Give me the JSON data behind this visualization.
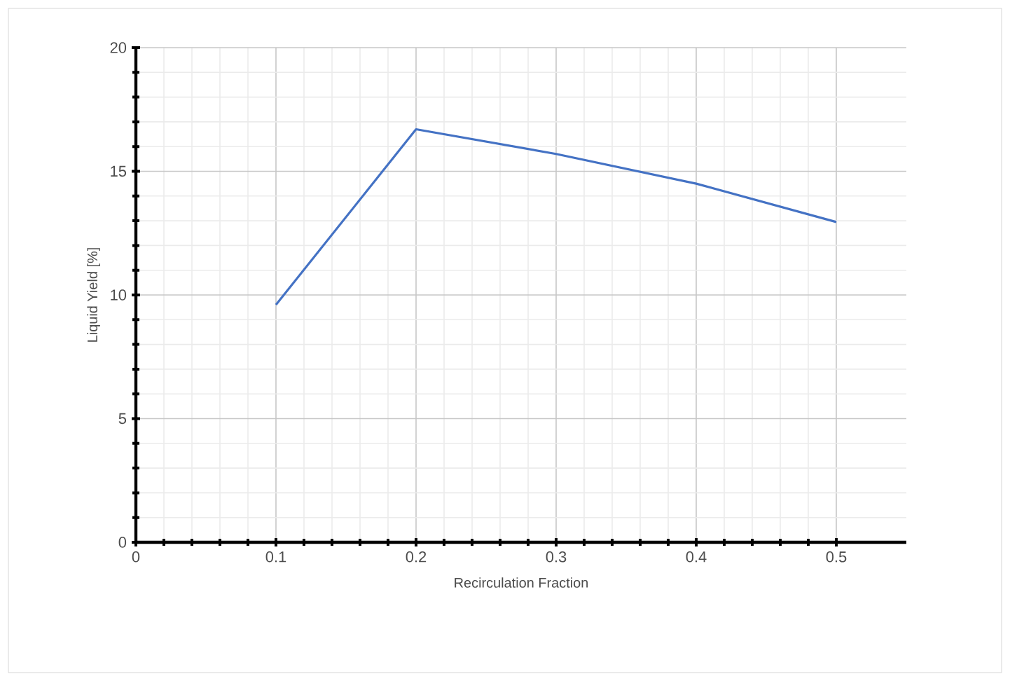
{
  "chart_data": {
    "type": "line",
    "xlabel": "Recirculation Fraction",
    "ylabel": "Liquid Yield [%]",
    "x": [
      0.1,
      0.2,
      0.3,
      0.4,
      0.5
    ],
    "series": [
      {
        "color": "#4472c4",
        "values": [
          9.6,
          16.7,
          15.7,
          14.5,
          12.95
        ]
      }
    ],
    "xlim": [
      0,
      0.55
    ],
    "ylim": [
      0,
      20
    ],
    "xticks": [
      0,
      0.1,
      0.2,
      0.3,
      0.4,
      0.5
    ],
    "yticks": [
      0,
      5,
      10,
      15,
      20
    ],
    "grid": true
  }
}
